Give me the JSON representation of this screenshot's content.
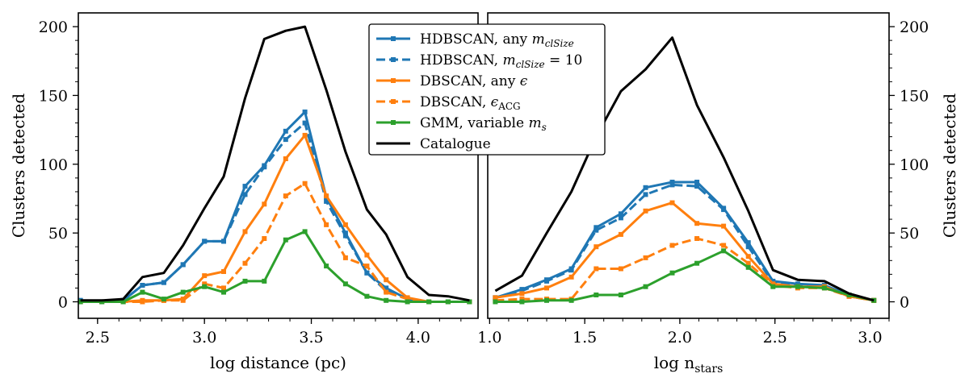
{
  "chart_data": [
    {
      "type": "line",
      "xlabel": "log distance (pc)",
      "ylabel": "Clusters detected",
      "xlim": [
        2.41,
        4.28
      ],
      "ylim": [
        -12,
        210
      ],
      "xticks": [
        2.5,
        3.0,
        3.5,
        4.0
      ],
      "xtick_labels": [
        "2.5",
        "3.0",
        "3.5",
        "4.0"
      ],
      "yticks": [
        0,
        50,
        100,
        150,
        200
      ],
      "ytick_labels": [
        "0",
        "50",
        "100",
        "150",
        "200"
      ],
      "grid": false,
      "series": [
        {
          "key": "hdbscan_any",
          "color": "#1f77b4",
          "dashed": false,
          "markers": true,
          "x": [
            2.42,
            2.52,
            2.62,
            2.71,
            2.81,
            2.9,
            3.0,
            3.09,
            3.19,
            3.28,
            3.38,
            3.47,
            3.57,
            3.66,
            3.76,
            3.85,
            3.95,
            4.05,
            4.14,
            4.24
          ],
          "y": [
            1,
            0,
            1,
            12,
            14,
            27,
            44,
            44,
            84,
            99,
            124,
            138,
            76,
            50,
            21,
            10,
            2,
            0,
            0,
            0
          ]
        },
        {
          "key": "hdbscan_10",
          "color": "#1f77b4",
          "dashed": true,
          "markers": true,
          "x": [
            2.42,
            2.52,
            2.62,
            2.71,
            2.81,
            2.9,
            3.0,
            3.09,
            3.19,
            3.28,
            3.38,
            3.47,
            3.57,
            3.66,
            3.76,
            3.85,
            3.95,
            4.05,
            4.14,
            4.24
          ],
          "y": [
            1,
            0,
            1,
            12,
            14,
            27,
            44,
            44,
            78,
            98,
            118,
            130,
            73,
            48,
            21,
            8,
            2,
            0,
            0,
            0
          ]
        },
        {
          "key": "dbscan_any",
          "color": "#ff7f0e",
          "dashed": false,
          "markers": true,
          "x": [
            2.42,
            2.52,
            2.62,
            2.71,
            2.81,
            2.9,
            3.0,
            3.09,
            3.19,
            3.28,
            3.38,
            3.47,
            3.57,
            3.66,
            3.76,
            3.85,
            3.95,
            4.05,
            4.14,
            4.24
          ],
          "y": [
            0,
            0,
            0,
            1,
            1,
            2,
            19,
            22,
            51,
            71,
            104,
            121,
            77,
            56,
            34,
            16,
            3,
            0,
            0,
            0
          ]
        },
        {
          "key": "dbscan_acg",
          "color": "#ff7f0e",
          "dashed": true,
          "markers": true,
          "x": [
            2.42,
            2.52,
            2.62,
            2.71,
            2.81,
            2.9,
            3.0,
            3.09,
            3.19,
            3.28,
            3.38,
            3.47,
            3.57,
            3.66,
            3.76,
            3.85,
            3.95,
            4.05,
            4.14,
            4.24
          ],
          "y": [
            0,
            0,
            0,
            0,
            1,
            1,
            13,
            10,
            28,
            46,
            77,
            86,
            56,
            32,
            26,
            7,
            2,
            0,
            0,
            0
          ]
        },
        {
          "key": "gmm",
          "color": "#2ca02c",
          "dashed": false,
          "markers": true,
          "x": [
            2.42,
            2.52,
            2.62,
            2.71,
            2.81,
            2.9,
            3.0,
            3.09,
            3.19,
            3.28,
            3.38,
            3.47,
            3.57,
            3.66,
            3.76,
            3.85,
            3.95,
            4.05,
            4.14,
            4.24
          ],
          "y": [
            0,
            0,
            0,
            7,
            2,
            7,
            11,
            7,
            15,
            15,
            45,
            51,
            26,
            13,
            4,
            1,
            0,
            0,
            0,
            0
          ]
        },
        {
          "key": "catalogue",
          "color": "#000000",
          "dashed": false,
          "markers": false,
          "x": [
            2.42,
            2.52,
            2.62,
            2.71,
            2.81,
            2.9,
            3.0,
            3.09,
            3.19,
            3.28,
            3.38,
            3.47,
            3.57,
            3.66,
            3.76,
            3.85,
            3.95,
            4.05,
            4.14,
            4.24
          ],
          "y": [
            1,
            1,
            2,
            18,
            21,
            41,
            68,
            91,
            148,
            191,
            197,
            200,
            154,
            109,
            67,
            49,
            18,
            5,
            4,
            1
          ]
        }
      ]
    },
    {
      "type": "line",
      "xlabel": "log n",
      "xlabel_sub": "stars",
      "ylabel": "Clusters detected",
      "xlim": [
        0.99,
        3.1
      ],
      "ylim": [
        -12,
        210
      ],
      "xticks": [
        1.0,
        1.5,
        2.0,
        2.5,
        3.0
      ],
      "xtick_labels": [
        "1.0",
        "1.5",
        "2.0",
        "2.5",
        "3.0"
      ],
      "yticks": [
        0,
        50,
        100,
        150,
        200
      ],
      "ytick_labels": [
        "0",
        "50",
        "100",
        "150",
        "200"
      ],
      "grid": false,
      "series": [
        {
          "key": "hdbscan_any",
          "color": "#1f77b4",
          "dashed": false,
          "markers": true,
          "x": [
            1.03,
            1.17,
            1.3,
            1.43,
            1.56,
            1.69,
            1.82,
            1.96,
            2.09,
            2.23,
            2.36,
            2.49,
            2.62,
            2.76,
            2.89,
            3.02
          ],
          "y": [
            3,
            9,
            16,
            24,
            54,
            64,
            83,
            87,
            87,
            68,
            43,
            15,
            13,
            12,
            5,
            1
          ]
        },
        {
          "key": "hdbscan_10",
          "color": "#1f77b4",
          "dashed": true,
          "markers": true,
          "x": [
            1.03,
            1.17,
            1.3,
            1.43,
            1.56,
            1.69,
            1.82,
            1.96,
            2.09,
            2.23,
            2.36,
            2.49,
            2.62,
            2.76,
            2.89,
            3.02
          ],
          "y": [
            3,
            8,
            15,
            23,
            52,
            61,
            78,
            85,
            84,
            67,
            40,
            14,
            12,
            11,
            4,
            1
          ]
        },
        {
          "key": "dbscan_any",
          "color": "#ff7f0e",
          "dashed": false,
          "markers": true,
          "x": [
            1.03,
            1.17,
            1.3,
            1.43,
            1.56,
            1.69,
            1.82,
            1.96,
            2.09,
            2.23,
            2.36,
            2.49,
            2.62,
            2.76,
            2.89,
            3.02
          ],
          "y": [
            3,
            6,
            10,
            18,
            40,
            49,
            66,
            72,
            57,
            55,
            33,
            13,
            11,
            11,
            4,
            1
          ]
        },
        {
          "key": "dbscan_acg",
          "color": "#ff7f0e",
          "dashed": true,
          "markers": true,
          "x": [
            1.03,
            1.17,
            1.3,
            1.43,
            1.56,
            1.69,
            1.82,
            1.96,
            2.09,
            2.23,
            2.36,
            2.49,
            2.62,
            2.76,
            2.89,
            3.02
          ],
          "y": [
            1,
            2,
            2,
            2,
            24,
            24,
            32,
            41,
            46,
            41,
            28,
            12,
            10,
            10,
            4,
            1
          ]
        },
        {
          "key": "gmm",
          "color": "#2ca02c",
          "dashed": false,
          "markers": true,
          "x": [
            1.03,
            1.17,
            1.3,
            1.43,
            1.56,
            1.69,
            1.82,
            1.96,
            2.09,
            2.23,
            2.36,
            2.49,
            2.62,
            2.76,
            2.89,
            3.02
          ],
          "y": [
            0,
            0,
            1,
            1,
            5,
            5,
            11,
            21,
            28,
            37,
            25,
            11,
            11,
            10,
            5,
            1
          ]
        },
        {
          "key": "catalogue",
          "color": "#000000",
          "dashed": false,
          "markers": false,
          "x": [
            1.03,
            1.17,
            1.3,
            1.43,
            1.56,
            1.69,
            1.82,
            1.96,
            2.09,
            2.23,
            2.36,
            2.49,
            2.62,
            2.76,
            2.89,
            3.02
          ],
          "y": [
            8,
            19,
            50,
            80,
            120,
            153,
            169,
            192,
            143,
            105,
            66,
            23,
            16,
            15,
            6,
            1
          ]
        }
      ]
    }
  ],
  "legend": {
    "placement": "upper-center",
    "entries": [
      {
        "key": "hdbscan_any",
        "text": "HDBSCAN, any ",
        "math": "m",
        "math_sub": "clSize",
        "suffix": ""
      },
      {
        "key": "hdbscan_10",
        "text": "HDBSCAN, ",
        "math": "m",
        "math_sub": "clSize",
        "suffix": " = 10"
      },
      {
        "key": "dbscan_any",
        "text": "DBSCAN, any ",
        "math": "ϵ",
        "math_sub": "",
        "suffix": ""
      },
      {
        "key": "dbscan_acg",
        "text": "DBSCAN, ",
        "math": "ϵ",
        "math_sub": "ACG",
        "suffix": ""
      },
      {
        "key": "gmm",
        "text": "GMM, variable ",
        "math": "m",
        "math_sub": "s",
        "suffix": ""
      },
      {
        "key": "catalogue",
        "text": "Catalogue",
        "math": "",
        "math_sub": "",
        "suffix": ""
      }
    ]
  }
}
